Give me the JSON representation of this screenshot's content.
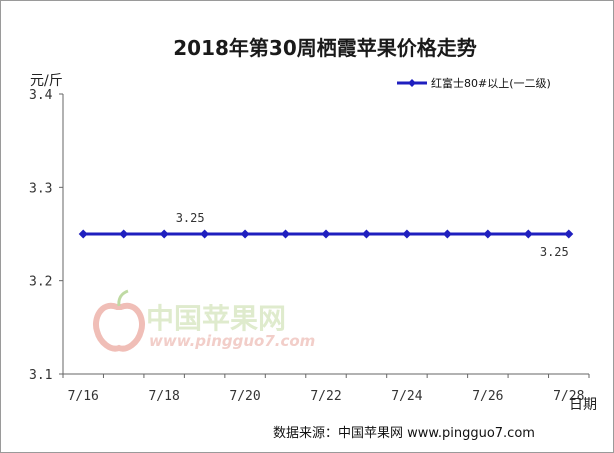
{
  "chart_data": {
    "type": "line",
    "title": "2018年第30周栖霞苹果价格走势",
    "ylabel": "元/斤",
    "xlabel": "日期",
    "ylim": [
      3.1,
      3.4
    ],
    "yticks": [
      "3.1",
      "3.2",
      "3.3",
      "3.4"
    ],
    "categories": [
      "7/16",
      "7/17",
      "7/18",
      "7/19",
      "7/20",
      "7/21",
      "7/22",
      "7/23",
      "7/24",
      "7/25",
      "7/26",
      "7/27",
      "7/28"
    ],
    "xtick_labels": [
      "7/16",
      "7/18",
      "7/20",
      "7/22",
      "7/24",
      "7/26",
      "7/28"
    ],
    "series": [
      {
        "name": "红富士80#以上(一二级)",
        "color": "#1f1fbf",
        "values": [
          3.25,
          3.25,
          3.25,
          3.25,
          3.25,
          3.25,
          3.25,
          3.25,
          3.25,
          3.25,
          3.25,
          3.25,
          3.25
        ]
      }
    ],
    "data_labels": [
      {
        "index": 2,
        "text": "3.25",
        "position": "above"
      },
      {
        "index": 11,
        "text": "3.25",
        "position": "below"
      }
    ],
    "legend_position": "top-right",
    "grid": false
  },
  "source_text": "数据来源：中国苹果网 www.pingguo7.com",
  "watermark": {
    "text": "中国苹果网",
    "url": "www.pingguo7.com",
    "icon": "apple-logo-icon"
  }
}
